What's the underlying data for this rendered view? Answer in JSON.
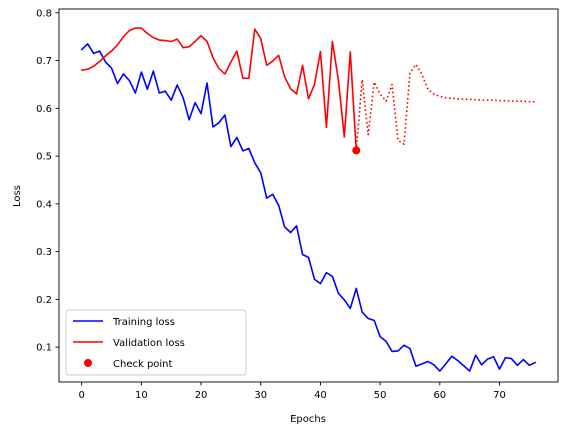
{
  "chart_data": {
    "type": "line",
    "title": "",
    "xlabel": "Epochs",
    "ylabel": "Loss",
    "xlim": [
      -3.8,
      79.8
    ],
    "ylim": [
      0.027,
      0.808
    ],
    "x_ticks": [
      0,
      10,
      20,
      30,
      40,
      50,
      60,
      70
    ],
    "x_tick_labels": [
      "0",
      "10",
      "20",
      "30",
      "40",
      "50",
      "60",
      "70"
    ],
    "y_ticks": [
      0.1,
      0.2,
      0.3,
      0.4,
      0.5,
      0.6,
      0.7,
      0.8
    ],
    "y_tick_labels": [
      "0.1",
      "0.2",
      "0.3",
      "0.4",
      "0.5",
      "0.6",
      "0.7",
      "0.8"
    ],
    "grid": false,
    "legend_position": "lower-left",
    "series": [
      {
        "name": "Training loss",
        "color": "#0000ff",
        "style": "solid",
        "x": [
          0,
          1,
          2,
          3,
          4,
          5,
          6,
          7,
          8,
          9,
          10,
          11,
          12,
          13,
          14,
          15,
          16,
          17,
          18,
          19,
          20,
          21,
          22,
          23,
          24,
          25,
          26,
          27,
          28,
          29,
          30,
          31,
          32,
          33,
          34,
          35,
          36,
          37,
          38,
          39,
          40,
          41,
          42,
          43,
          44,
          45,
          46,
          47,
          48,
          49,
          50,
          51,
          52,
          53,
          54,
          55,
          56,
          57,
          58,
          59,
          60,
          61,
          62,
          63,
          64,
          65,
          66,
          67,
          68,
          69,
          70,
          71,
          72,
          73,
          74,
          75,
          76
        ],
        "y": [
          0.723,
          0.735,
          0.715,
          0.72,
          0.697,
          0.684,
          0.652,
          0.672,
          0.658,
          0.632,
          0.676,
          0.64,
          0.678,
          0.632,
          0.636,
          0.617,
          0.649,
          0.622,
          0.576,
          0.612,
          0.589,
          0.653,
          0.561,
          0.57,
          0.586,
          0.52,
          0.539,
          0.511,
          0.516,
          0.486,
          0.465,
          0.412,
          0.42,
          0.397,
          0.352,
          0.34,
          0.354,
          0.294,
          0.288,
          0.242,
          0.233,
          0.256,
          0.248,
          0.213,
          0.199,
          0.181,
          0.223,
          0.173,
          0.16,
          0.156,
          0.122,
          0.112,
          0.091,
          0.092,
          0.104,
          0.097,
          0.06,
          0.065,
          0.07,
          0.063,
          0.05,
          0.065,
          0.081,
          0.072,
          0.061,
          0.05,
          0.083,
          0.063,
          0.075,
          0.08,
          0.054,
          0.078,
          0.076,
          0.062,
          0.074,
          0.062,
          0.068
        ]
      },
      {
        "name": "Validation loss",
        "color": "#ff0000",
        "style": "solid",
        "x": [
          0,
          1,
          2,
          3,
          4,
          5,
          6,
          7,
          8,
          9,
          10,
          11,
          12,
          13,
          14,
          15,
          16,
          17,
          18,
          19,
          20,
          21,
          22,
          23,
          24,
          25,
          26,
          27,
          28,
          29,
          30,
          31,
          32,
          33,
          34,
          35,
          36,
          37,
          38,
          39,
          40,
          41,
          42,
          43,
          44,
          45,
          46
        ],
        "y": [
          0.68,
          0.682,
          0.688,
          0.698,
          0.71,
          0.72,
          0.733,
          0.75,
          0.763,
          0.768,
          0.768,
          0.757,
          0.748,
          0.743,
          0.742,
          0.74,
          0.745,
          0.727,
          0.729,
          0.74,
          0.752,
          0.74,
          0.706,
          0.683,
          0.672,
          0.697,
          0.72,
          0.663,
          0.663,
          0.766,
          0.746,
          0.69,
          0.699,
          0.711,
          0.666,
          0.641,
          0.63,
          0.69,
          0.62,
          0.65,
          0.719,
          0.56,
          0.74,
          0.66,
          0.54,
          0.718,
          0.512
        ]
      },
      {
        "name": "",
        "color": "#ff0000",
        "style": "dotted",
        "x": [
          46,
          47,
          48,
          49,
          50,
          51,
          52,
          53,
          54,
          55,
          56,
          57,
          58,
          59,
          60,
          61,
          62,
          63,
          64,
          65,
          66,
          67,
          68,
          69,
          70,
          71,
          72,
          73,
          74,
          75,
          76
        ],
        "y": [
          0.512,
          0.66,
          0.545,
          0.655,
          0.63,
          0.615,
          0.65,
          0.533,
          0.525,
          0.674,
          0.692,
          0.671,
          0.64,
          0.63,
          0.625,
          0.622,
          0.621,
          0.62,
          0.619,
          0.619,
          0.618,
          0.617,
          0.617,
          0.617,
          0.616,
          0.616,
          0.615,
          0.615,
          0.615,
          0.614,
          0.614
        ]
      }
    ],
    "points": [
      {
        "name": "Check point",
        "x": 46,
        "y": 0.512,
        "color": "#ff0000"
      }
    ],
    "legend": [
      {
        "label": "Training loss",
        "color": "#0000ff",
        "marker": "line"
      },
      {
        "label": "Validation loss",
        "color": "#ff0000",
        "marker": "line"
      },
      {
        "label": "Check point",
        "color": "#ff0000",
        "marker": "dot"
      }
    ]
  }
}
